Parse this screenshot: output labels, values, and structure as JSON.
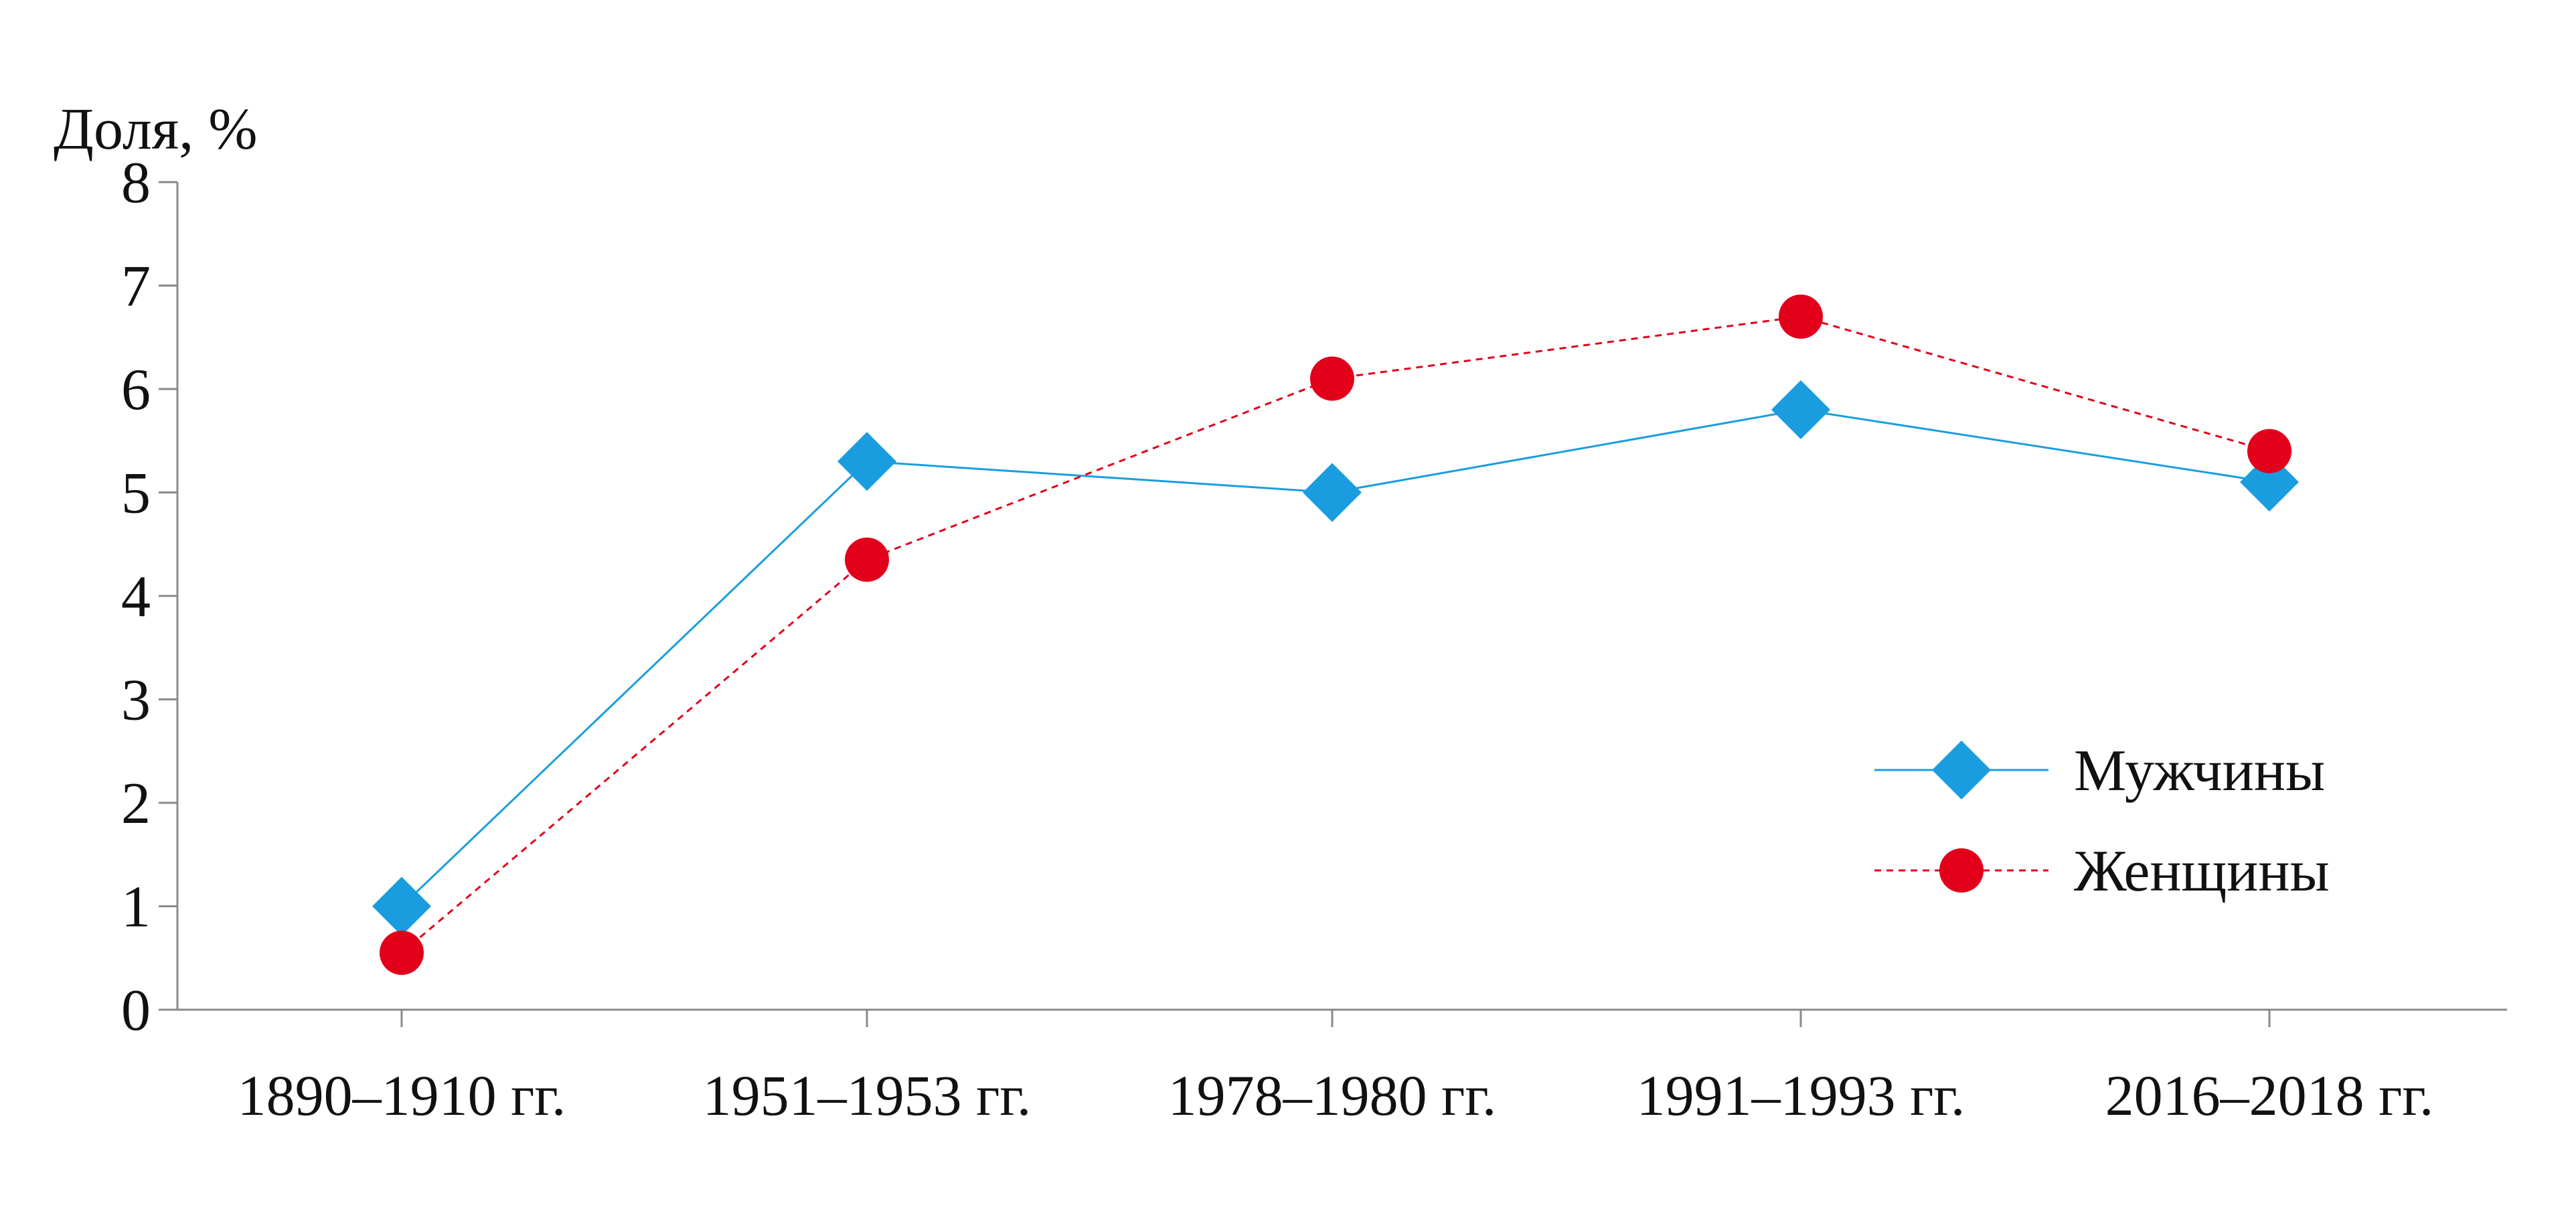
{
  "chart_data": {
    "type": "line",
    "title": "",
    "ylabel": "Доля, %",
    "xlabel": "",
    "categories": [
      "1890–1910 гг.",
      "1951–1953 гг.",
      "1978–1980 гг.",
      "1991–1993 гг.",
      "2016–2018 гг."
    ],
    "ylim": [
      0,
      8
    ],
    "yticks": [
      0,
      1,
      2,
      3,
      4,
      5,
      6,
      7,
      8
    ],
    "ytick_labels": [
      "0",
      "1",
      "2",
      "3",
      "4",
      "5",
      "6",
      "7",
      "8"
    ],
    "grid": false,
    "legend": "right",
    "series": [
      {
        "name": "Мужчины",
        "values": [
          1.0,
          5.3,
          5.0,
          5.8,
          5.1
        ],
        "color": "#1a9ddf",
        "marker": "diamond",
        "line_style": "solid"
      },
      {
        "name": "Женщины",
        "values": [
          0.55,
          4.35,
          6.1,
          6.7,
          5.4
        ],
        "color": "#e2001a",
        "marker": "circle",
        "line_style": "dashed"
      }
    ]
  }
}
